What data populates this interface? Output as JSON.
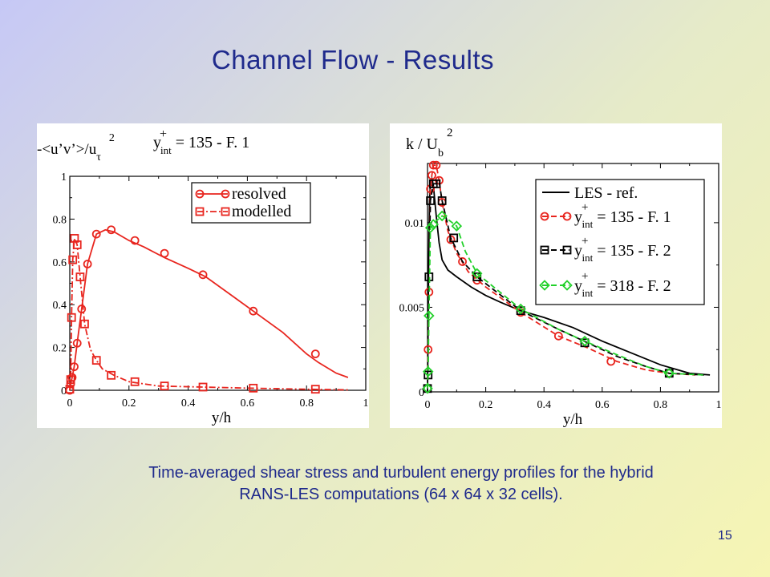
{
  "slide": {
    "title": "Channel Flow - Results",
    "caption_line1": "Time-averaged shear stress and turbulent energy profiles for the hybrid",
    "caption_line2": "RANS-LES computations (64 x 64 x 32 cells).",
    "page_number": "15"
  },
  "chart_data": [
    {
      "type": "line",
      "ylabel_parts": {
        "lead": "-<u’v’>/u",
        "sub": "τ",
        "sup": "2"
      },
      "annotation_parts": {
        "y": "y",
        "sup": "+",
        "sub": "int",
        "rest": " = 135 - F. 1"
      },
      "xlabel": "y/h",
      "xlim": [
        0,
        1
      ],
      "ylim": [
        0,
        1
      ],
      "xticks": [
        0,
        0.2,
        0.4,
        0.6,
        0.8,
        1
      ],
      "xtick_labels": [
        "0",
        "0.2",
        "0.4",
        "0.6",
        "0.8",
        "1"
      ],
      "yticks": [
        0,
        0.2,
        0.4,
        0.6,
        0.8,
        1
      ],
      "ytick_labels": [
        "0",
        "0.2",
        "0.4",
        "0.6",
        "0.8",
        "1"
      ],
      "grid": false,
      "legend_position": "top-right",
      "series": [
        {
          "name": "resolved",
          "color": "#e8251e",
          "dash": "solid",
          "marker": "circle",
          "x": [
            0,
            0.003,
            0.008,
            0.015,
            0.025,
            0.04,
            0.06,
            0.09,
            0.12,
            0.15,
            0.2,
            0.25,
            0.32,
            0.4,
            0.46,
            0.55,
            0.62,
            0.72,
            0.8,
            0.84,
            0.9,
            0.94
          ],
          "y": [
            0,
            0.03,
            0.06,
            0.11,
            0.22,
            0.38,
            0.59,
            0.73,
            0.75,
            0.74,
            0.7,
            0.67,
            0.62,
            0.57,
            0.53,
            0.44,
            0.37,
            0.27,
            0.17,
            0.13,
            0.08,
            0.06
          ],
          "marker_x": [
            0,
            0.003,
            0.008,
            0.015,
            0.025,
            0.04,
            0.06,
            0.09,
            0.14,
            0.22,
            0.32,
            0.45,
            0.62,
            0.83
          ],
          "marker_y": [
            0,
            0.03,
            0.06,
            0.11,
            0.22,
            0.38,
            0.59,
            0.73,
            0.75,
            0.7,
            0.64,
            0.54,
            0.37,
            0.17
          ]
        },
        {
          "name": "modelled",
          "color": "#e8251e",
          "dash": "dashdot",
          "marker": "square",
          "x": [
            0,
            0.003,
            0.006,
            0.01,
            0.016,
            0.025,
            0.035,
            0.05,
            0.07,
            0.09,
            0.11,
            0.15,
            0.2,
            0.3,
            0.45,
            0.6,
            0.8,
            0.94
          ],
          "y": [
            0,
            0.05,
            0.34,
            0.61,
            0.71,
            0.68,
            0.53,
            0.31,
            0.19,
            0.14,
            0.1,
            0.07,
            0.04,
            0.02,
            0.015,
            0.01,
            0.005,
            0.002
          ],
          "marker_x": [
            0,
            0.003,
            0.006,
            0.01,
            0.016,
            0.025,
            0.035,
            0.05,
            0.09,
            0.14,
            0.22,
            0.32,
            0.45,
            0.62,
            0.83
          ],
          "marker_y": [
            0.005,
            0.05,
            0.34,
            0.61,
            0.71,
            0.68,
            0.53,
            0.31,
            0.14,
            0.07,
            0.04,
            0.02,
            0.015,
            0.01,
            0.005
          ]
        }
      ]
    },
    {
      "type": "line",
      "ylabel_parts": {
        "lead": "k / U",
        "sub": "b",
        "sup": "2"
      },
      "xlabel": "y/h",
      "xlim": [
        0,
        1
      ],
      "ylim": [
        0,
        0.0135
      ],
      "xticks": [
        0,
        0.2,
        0.4,
        0.6,
        0.8,
        1
      ],
      "xtick_labels": [
        "0",
        "0.2",
        "0.4",
        "0.6",
        "0.8",
        "1"
      ],
      "yticks": [
        0,
        0.005,
        0.01
      ],
      "ytick_labels": [
        "0",
        "0.005",
        "0.01"
      ],
      "grid": false,
      "legend_position": "top-right",
      "series": [
        {
          "name": "LES - ref.",
          "color": "#000000",
          "dash": "solid",
          "marker": "none",
          "x": [
            0,
            0.002,
            0.004,
            0.007,
            0.01,
            0.015,
            0.02,
            0.03,
            0.04,
            0.05,
            0.07,
            0.1,
            0.15,
            0.2,
            0.25,
            0.32,
            0.4,
            0.5,
            0.6,
            0.7,
            0.8,
            0.9,
            0.97
          ],
          "y": [
            0,
            0.0035,
            0.008,
            0.0112,
            0.0124,
            0.0126,
            0.0122,
            0.0104,
            0.0088,
            0.0078,
            0.0072,
            0.0068,
            0.0062,
            0.0057,
            0.0053,
            0.0048,
            0.0044,
            0.0038,
            0.003,
            0.0023,
            0.0016,
            0.0011,
            0.001
          ]
        },
        {
          "name": "135 - F. 1",
          "color": "#e8251e",
          "dash": "dashed",
          "marker": "circle",
          "x": [
            0,
            0.002,
            0.005,
            0.01,
            0.015,
            0.02,
            0.03,
            0.04,
            0.05,
            0.07,
            0.1,
            0.14,
            0.2,
            0.32,
            0.45,
            0.55,
            0.65,
            0.75,
            0.83,
            0.92
          ],
          "y": [
            0.0002,
            0.0025,
            0.0059,
            0.012,
            0.0128,
            0.0134,
            0.0134,
            0.0125,
            0.0112,
            0.0095,
            0.0082,
            0.0071,
            0.0062,
            0.0047,
            0.0033,
            0.0026,
            0.0018,
            0.0013,
            0.0011,
            0.001
          ],
          "marker_x": [
            0,
            0.002,
            0.005,
            0.01,
            0.015,
            0.02,
            0.03,
            0.04,
            0.05,
            0.08,
            0.12,
            0.17,
            0.32,
            0.45,
            0.63,
            0.83
          ],
          "marker_y": [
            0.0002,
            0.0025,
            0.0059,
            0.012,
            0.0128,
            0.0134,
            0.0134,
            0.0125,
            0.0112,
            0.009,
            0.0077,
            0.0066,
            0.0047,
            0.0033,
            0.0018,
            0.0011
          ]
        },
        {
          "name": "135 - F. 2",
          "color": "#000000",
          "dash": "dashed",
          "marker": "square",
          "x": [
            0,
            0.002,
            0.005,
            0.01,
            0.02,
            0.03,
            0.04,
            0.05,
            0.08,
            0.12,
            0.17,
            0.32,
            0.45,
            0.55,
            0.65,
            0.75,
            0.83,
            0.95
          ],
          "y": [
            0.0002,
            0.001,
            0.0068,
            0.0113,
            0.0123,
            0.0123,
            0.0124,
            0.0113,
            0.0091,
            0.0077,
            0.0068,
            0.0048,
            0.0037,
            0.0029,
            0.0021,
            0.0015,
            0.0011,
            0.001
          ],
          "marker_x": [
            0,
            0.002,
            0.005,
            0.01,
            0.02,
            0.03,
            0.05,
            0.09,
            0.17,
            0.32,
            0.54,
            0.83
          ],
          "marker_y": [
            0.0002,
            0.001,
            0.0068,
            0.0113,
            0.0123,
            0.0123,
            0.0113,
            0.0091,
            0.0068,
            0.0048,
            0.0029,
            0.0011
          ]
        },
        {
          "name": "318 - F. 2",
          "color": "#22d12a",
          "dash": "dashed",
          "marker": "diamond",
          "x": [
            0,
            0.002,
            0.005,
            0.01,
            0.02,
            0.03,
            0.05,
            0.07,
            0.1,
            0.13,
            0.17,
            0.32,
            0.45,
            0.54,
            0.65,
            0.75,
            0.83,
            0.95
          ],
          "y": [
            0.0002,
            0.0012,
            0.0045,
            0.0097,
            0.0099,
            0.0101,
            0.0104,
            0.0102,
            0.0098,
            0.0083,
            0.007,
            0.0049,
            0.0037,
            0.003,
            0.0022,
            0.0015,
            0.0011,
            0.001
          ],
          "marker_x": [
            0,
            0.002,
            0.005,
            0.01,
            0.02,
            0.05,
            0.1,
            0.17,
            0.32,
            0.54,
            0.83
          ],
          "marker_y": [
            0.0002,
            0.0012,
            0.0045,
            0.0097,
            0.0099,
            0.0104,
            0.0098,
            0.007,
            0.0049,
            0.003,
            0.0011
          ]
        }
      ],
      "legend_labels": [
        {
          "plain": "LES - ref."
        },
        {
          "y": "y",
          "sup": "+",
          "sub": "int",
          "rest": " = 135 - F. 1"
        },
        {
          "y": "y",
          "sup": "+",
          "sub": "int",
          "rest": " = 135 - F. 2"
        },
        {
          "y": "y",
          "sup": "+",
          "sub": "int",
          "rest": " = 318 - F. 2"
        }
      ]
    }
  ]
}
